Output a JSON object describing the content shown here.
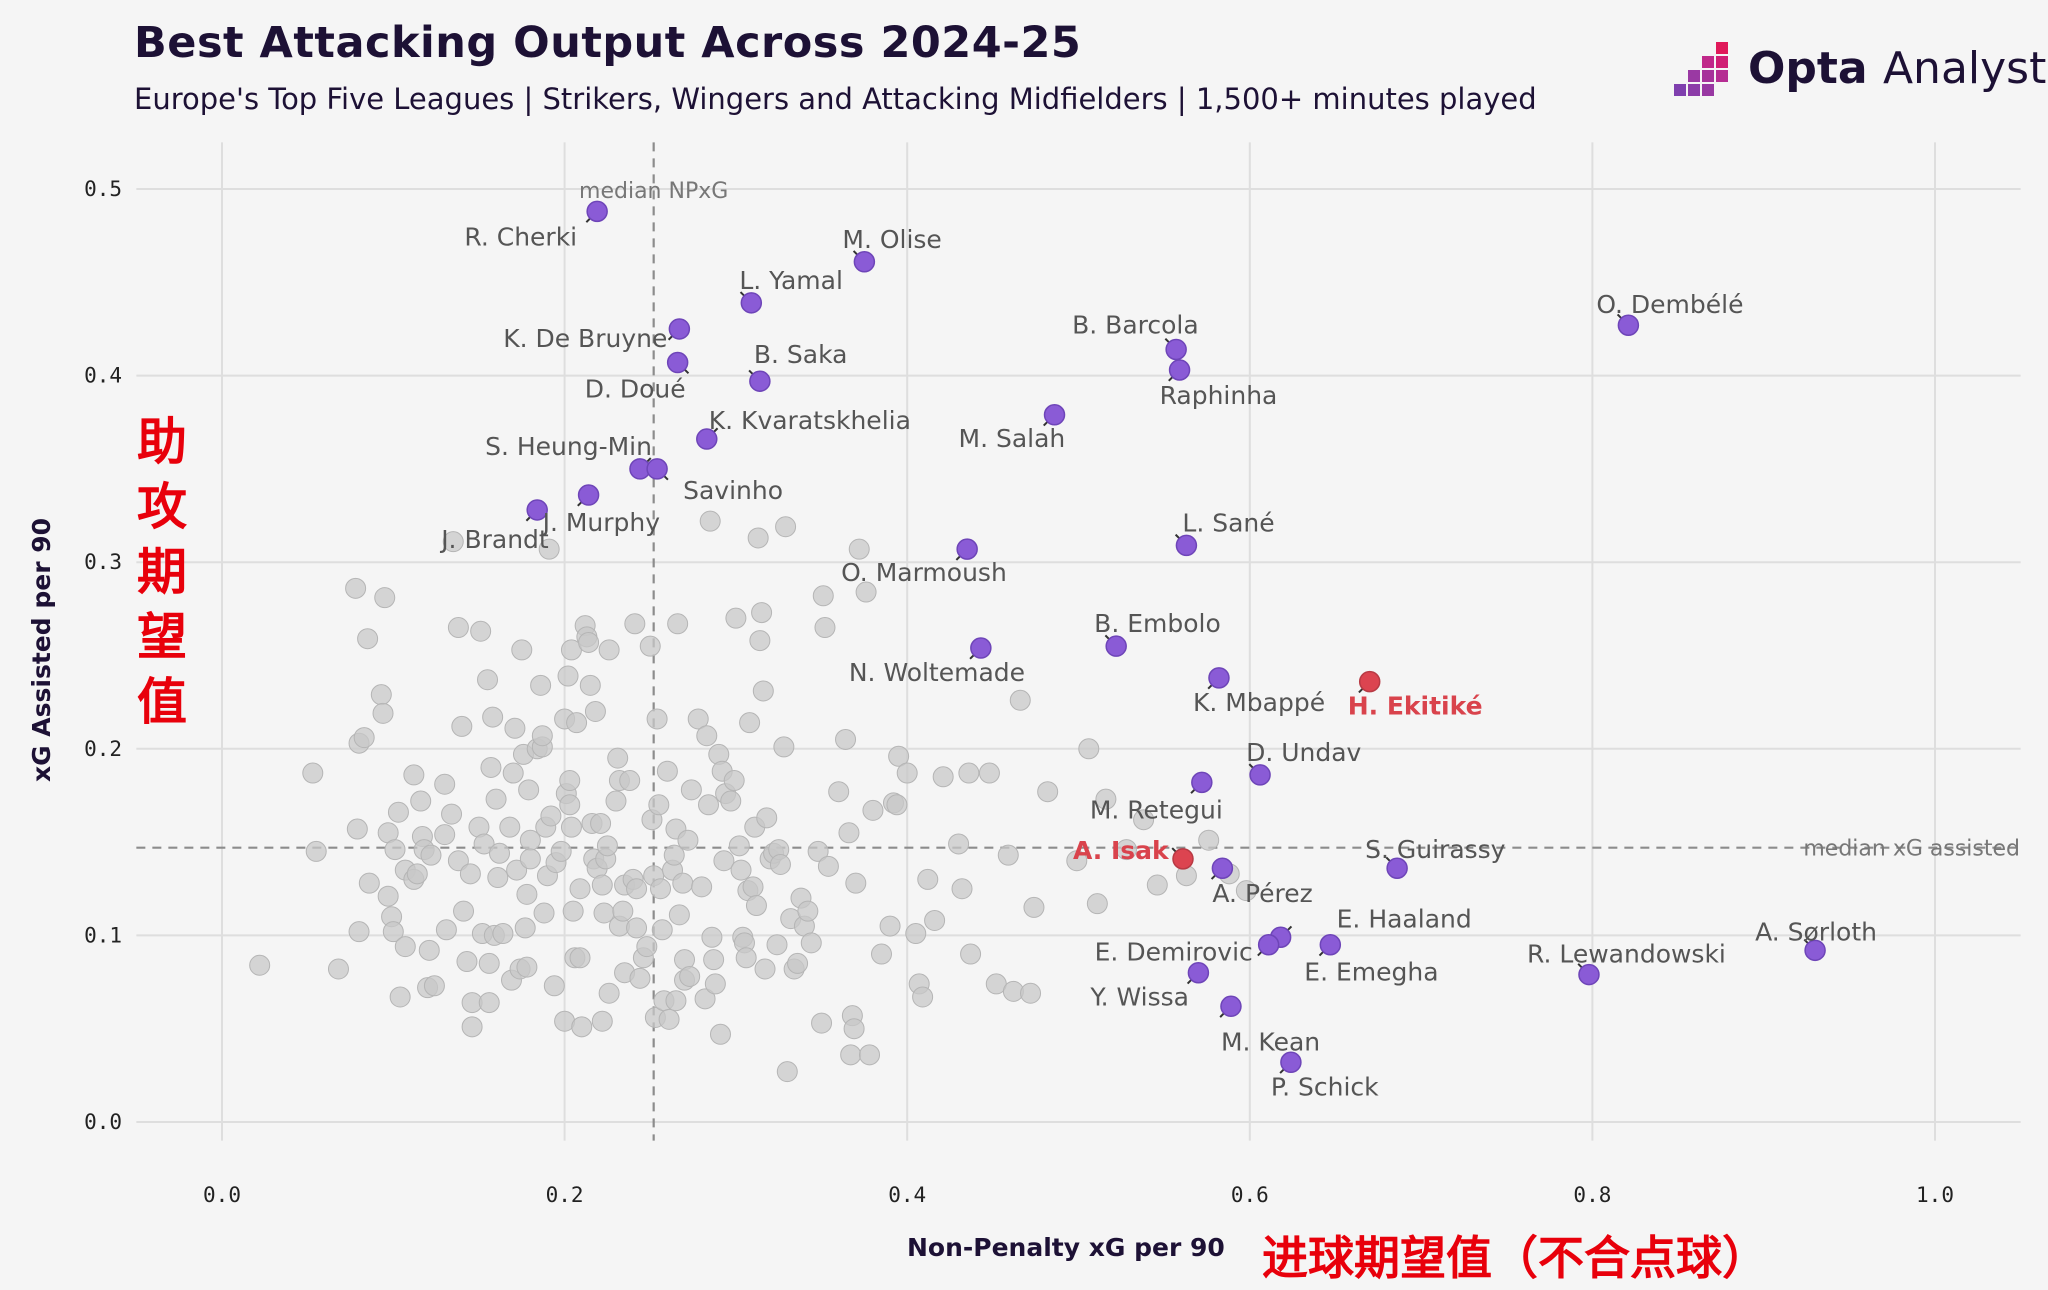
{
  "header": {
    "title": "Best Attacking Output Across 2024-25",
    "subtitle": "Europe's Top Five Leagues | Strikers, Wingers and Attacking Midfielders | 1,500+ minutes played"
  },
  "logo": {
    "brand": "Opta",
    "suffix": "Analyst"
  },
  "annotations": {
    "y_cn": [
      "助",
      "攻",
      "期",
      "望",
      "值"
    ],
    "x_cn": "进球期望值（不合点球）"
  },
  "colors": {
    "background": "#f5f5f5",
    "labeled_point": "#8a5bd6",
    "highlight_point": "#dc4450",
    "highlight_text": "#d9434c",
    "background_point": "#c8c8c8",
    "grid": "#dedede",
    "median_line": "#8c8c8c",
    "annotation_red": "#e8000b"
  },
  "chart_data": {
    "type": "scatter",
    "xlabel": "Non-Penalty xG per 90",
    "ylabel": "xG Assisted per 90",
    "xlim": [
      -0.05,
      1.05
    ],
    "ylim": [
      -0.01,
      0.525
    ],
    "xticks": [
      "0.0",
      "0.2",
      "0.4",
      "0.6",
      "0.8",
      "1.0"
    ],
    "yticks": [
      "0.0",
      "0.1",
      "0.2",
      "0.3",
      "0.4",
      "0.5"
    ],
    "grid": true,
    "median_lines": {
      "x": 0.252,
      "x_label": "median NPxG",
      "y": 0.147,
      "y_label": "median xG assisted"
    },
    "labeled_points": [
      {
        "name": "R. Cherki",
        "x": 0.219,
        "y": 0.488
      },
      {
        "name": "M. Olise",
        "x": 0.375,
        "y": 0.461
      },
      {
        "name": "L. Yamal",
        "x": 0.309,
        "y": 0.439
      },
      {
        "name": "K. De Bruyne",
        "x": 0.267,
        "y": 0.425
      },
      {
        "name": "D. Doué",
        "x": 0.266,
        "y": 0.407
      },
      {
        "name": "B. Saka",
        "x": 0.314,
        "y": 0.397
      },
      {
        "name": "K. Kvaratskhelia",
        "x": 0.283,
        "y": 0.366
      },
      {
        "name": "S. Heung-Min",
        "x": 0.244,
        "y": 0.35
      },
      {
        "name": "Savinho",
        "x": 0.254,
        "y": 0.35
      },
      {
        "name": "J. Murphy",
        "x": 0.214,
        "y": 0.336
      },
      {
        "name": "J. Brandt",
        "x": 0.184,
        "y": 0.328
      },
      {
        "name": "O. Dembélé",
        "x": 0.821,
        "y": 0.427
      },
      {
        "name": "B. Barcola",
        "x": 0.557,
        "y": 0.414
      },
      {
        "name": "Raphinha",
        "x": 0.559,
        "y": 0.403
      },
      {
        "name": "M. Salah",
        "x": 0.486,
        "y": 0.379
      },
      {
        "name": "L. Sané",
        "x": 0.563,
        "y": 0.309
      },
      {
        "name": "O. Marmoush",
        "x": 0.435,
        "y": 0.307
      },
      {
        "name": "B. Embolo",
        "x": 0.522,
        "y": 0.255
      },
      {
        "name": "N. Woltemade",
        "x": 0.443,
        "y": 0.254
      },
      {
        "name": "K. Mbappé",
        "x": 0.582,
        "y": 0.238
      },
      {
        "name": "D. Undav",
        "x": 0.606,
        "y": 0.186
      },
      {
        "name": "M. Retegui",
        "x": 0.572,
        "y": 0.182
      },
      {
        "name": "S. Guirassy",
        "x": 0.686,
        "y": 0.136
      },
      {
        "name": "A. Pérez",
        "x": 0.584,
        "y": 0.136
      },
      {
        "name": "E. Haaland",
        "x": 0.618,
        "y": 0.099
      },
      {
        "name": "E. Demirovic",
        "x": 0.611,
        "y": 0.095
      },
      {
        "name": "E. Emegha",
        "x": 0.647,
        "y": 0.095
      },
      {
        "name": "Y. Wissa",
        "x": 0.57,
        "y": 0.08
      },
      {
        "name": "M. Kean",
        "x": 0.589,
        "y": 0.062
      },
      {
        "name": "P. Schick",
        "x": 0.624,
        "y": 0.032
      },
      {
        "name": "R. Lewandowski",
        "x": 0.798,
        "y": 0.079
      },
      {
        "name": "A. Sørloth",
        "x": 0.93,
        "y": 0.092
      }
    ],
    "highlighted_points": [
      {
        "name": "H. Ekitiké",
        "x": 0.67,
        "y": 0.236
      },
      {
        "name": "A. Isak",
        "x": 0.561,
        "y": 0.141
      }
    ],
    "unlabeled_points": [
      [
        0.022,
        0.084
      ],
      [
        0.053,
        0.187
      ],
      [
        0.055,
        0.145
      ],
      [
        0.068,
        0.082
      ],
      [
        0.078,
        0.286
      ],
      [
        0.08,
        0.203
      ],
      [
        0.079,
        0.157
      ],
      [
        0.08,
        0.102
      ],
      [
        0.083,
        0.206
      ],
      [
        0.085,
        0.259
      ],
      [
        0.086,
        0.128
      ],
      [
        0.093,
        0.229
      ],
      [
        0.094,
        0.219
      ],
      [
        0.095,
        0.281
      ],
      [
        0.097,
        0.155
      ],
      [
        0.097,
        0.121
      ],
      [
        0.099,
        0.11
      ],
      [
        0.1,
        0.102
      ],
      [
        0.101,
        0.146
      ],
      [
        0.103,
        0.166
      ],
      [
        0.104,
        0.067
      ],
      [
        0.107,
        0.135
      ],
      [
        0.107,
        0.094
      ],
      [
        0.112,
        0.186
      ],
      [
        0.112,
        0.13
      ],
      [
        0.114,
        0.133
      ],
      [
        0.116,
        0.172
      ],
      [
        0.117,
        0.153
      ],
      [
        0.118,
        0.146
      ],
      [
        0.12,
        0.072
      ],
      [
        0.121,
        0.092
      ],
      [
        0.122,
        0.143
      ],
      [
        0.124,
        0.073
      ],
      [
        0.13,
        0.181
      ],
      [
        0.13,
        0.154
      ],
      [
        0.131,
        0.103
      ],
      [
        0.134,
        0.165
      ],
      [
        0.135,
        0.311
      ],
      [
        0.138,
        0.14
      ],
      [
        0.138,
        0.265
      ],
      [
        0.14,
        0.212
      ],
      [
        0.141,
        0.113
      ],
      [
        0.143,
        0.086
      ],
      [
        0.145,
        0.133
      ],
      [
        0.146,
        0.064
      ],
      [
        0.146,
        0.051
      ],
      [
        0.15,
        0.158
      ],
      [
        0.151,
        0.263
      ],
      [
        0.152,
        0.101
      ],
      [
        0.153,
        0.149
      ],
      [
        0.155,
        0.237
      ],
      [
        0.156,
        0.085
      ],
      [
        0.156,
        0.064
      ],
      [
        0.157,
        0.19
      ],
      [
        0.158,
        0.217
      ],
      [
        0.159,
        0.1
      ],
      [
        0.16,
        0.173
      ],
      [
        0.161,
        0.131
      ],
      [
        0.162,
        0.144
      ],
      [
        0.164,
        0.101
      ],
      [
        0.168,
        0.158
      ],
      [
        0.169,
        0.076
      ],
      [
        0.17,
        0.187
      ],
      [
        0.171,
        0.211
      ],
      [
        0.172,
        0.135
      ],
      [
        0.174,
        0.082
      ],
      [
        0.175,
        0.253
      ],
      [
        0.176,
        0.197
      ],
      [
        0.177,
        0.104
      ],
      [
        0.178,
        0.083
      ],
      [
        0.178,
        0.122
      ],
      [
        0.179,
        0.178
      ],
      [
        0.18,
        0.151
      ],
      [
        0.18,
        0.141
      ],
      [
        0.184,
        0.2
      ],
      [
        0.186,
        0.234
      ],
      [
        0.187,
        0.201
      ],
      [
        0.187,
        0.207
      ],
      [
        0.188,
        0.112
      ],
      [
        0.189,
        0.158
      ],
      [
        0.19,
        0.132
      ],
      [
        0.191,
        0.307
      ],
      [
        0.192,
        0.164
      ],
      [
        0.194,
        0.073
      ],
      [
        0.195,
        0.139
      ],
      [
        0.198,
        0.145
      ],
      [
        0.2,
        0.054
      ],
      [
        0.2,
        0.216
      ],
      [
        0.201,
        0.176
      ],
      [
        0.202,
        0.239
      ],
      [
        0.203,
        0.183
      ],
      [
        0.203,
        0.17
      ],
      [
        0.204,
        0.253
      ],
      [
        0.204,
        0.158
      ],
      [
        0.205,
        0.113
      ],
      [
        0.206,
        0.088
      ],
      [
        0.207,
        0.214
      ],
      [
        0.209,
        0.088
      ],
      [
        0.209,
        0.125
      ],
      [
        0.21,
        0.051
      ],
      [
        0.212,
        0.266
      ],
      [
        0.213,
        0.26
      ],
      [
        0.214,
        0.257
      ],
      [
        0.215,
        0.234
      ],
      [
        0.216,
        0.16
      ],
      [
        0.217,
        0.141
      ],
      [
        0.218,
        0.22
      ],
      [
        0.219,
        0.136
      ],
      [
        0.221,
        0.16
      ],
      [
        0.222,
        0.127
      ],
      [
        0.222,
        0.054
      ],
      [
        0.223,
        0.112
      ],
      [
        0.224,
        0.141
      ],
      [
        0.225,
        0.148
      ],
      [
        0.226,
        0.253
      ],
      [
        0.226,
        0.069
      ],
      [
        0.23,
        0.172
      ],
      [
        0.231,
        0.195
      ],
      [
        0.232,
        0.105
      ],
      [
        0.232,
        0.183
      ],
      [
        0.234,
        0.113
      ],
      [
        0.235,
        0.127
      ],
      [
        0.235,
        0.08
      ],
      [
        0.238,
        0.183
      ],
      [
        0.24,
        0.13
      ],
      [
        0.241,
        0.267
      ],
      [
        0.242,
        0.125
      ],
      [
        0.242,
        0.104
      ],
      [
        0.244,
        0.077
      ],
      [
        0.246,
        0.088
      ],
      [
        0.248,
        0.094
      ],
      [
        0.25,
        0.255
      ],
      [
        0.251,
        0.162
      ],
      [
        0.252,
        0.132
      ],
      [
        0.253,
        0.056
      ],
      [
        0.254,
        0.216
      ],
      [
        0.255,
        0.17
      ],
      [
        0.256,
        0.125
      ],
      [
        0.257,
        0.103
      ],
      [
        0.258,
        0.065
      ],
      [
        0.26,
        0.188
      ],
      [
        0.261,
        0.055
      ],
      [
        0.263,
        0.135
      ],
      [
        0.264,
        0.143
      ],
      [
        0.265,
        0.065
      ],
      [
        0.265,
        0.157
      ],
      [
        0.266,
        0.267
      ],
      [
        0.267,
        0.111
      ],
      [
        0.269,
        0.128
      ],
      [
        0.27,
        0.087
      ],
      [
        0.27,
        0.076
      ],
      [
        0.272,
        0.151
      ],
      [
        0.273,
        0.078
      ],
      [
        0.274,
        0.178
      ],
      [
        0.278,
        0.216
      ],
      [
        0.28,
        0.126
      ],
      [
        0.282,
        0.066
      ],
      [
        0.283,
        0.207
      ],
      [
        0.284,
        0.17
      ],
      [
        0.285,
        0.322
      ],
      [
        0.286,
        0.099
      ],
      [
        0.287,
        0.087
      ],
      [
        0.288,
        0.074
      ],
      [
        0.29,
        0.197
      ],
      [
        0.291,
        0.047
      ],
      [
        0.292,
        0.188
      ],
      [
        0.293,
        0.14
      ],
      [
        0.294,
        0.176
      ],
      [
        0.297,
        0.172
      ],
      [
        0.299,
        0.183
      ],
      [
        0.3,
        0.27
      ],
      [
        0.302,
        0.148
      ],
      [
        0.303,
        0.135
      ],
      [
        0.304,
        0.099
      ],
      [
        0.305,
        0.096
      ],
      [
        0.306,
        0.088
      ],
      [
        0.307,
        0.124
      ],
      [
        0.308,
        0.214
      ],
      [
        0.31,
        0.126
      ],
      [
        0.311,
        0.158
      ],
      [
        0.312,
        0.116
      ],
      [
        0.313,
        0.313
      ],
      [
        0.314,
        0.258
      ],
      [
        0.315,
        0.273
      ],
      [
        0.316,
        0.231
      ],
      [
        0.317,
        0.082
      ],
      [
        0.318,
        0.163
      ],
      [
        0.32,
        0.141
      ],
      [
        0.322,
        0.144
      ],
      [
        0.324,
        0.095
      ],
      [
        0.325,
        0.146
      ],
      [
        0.326,
        0.138
      ],
      [
        0.328,
        0.201
      ],
      [
        0.329,
        0.319
      ],
      [
        0.33,
        0.027
      ],
      [
        0.332,
        0.109
      ],
      [
        0.334,
        0.082
      ],
      [
        0.336,
        0.085
      ],
      [
        0.338,
        0.12
      ],
      [
        0.34,
        0.105
      ],
      [
        0.342,
        0.113
      ],
      [
        0.344,
        0.096
      ],
      [
        0.348,
        0.145
      ],
      [
        0.35,
        0.053
      ],
      [
        0.351,
        0.282
      ],
      [
        0.352,
        0.265
      ],
      [
        0.354,
        0.137
      ],
      [
        0.36,
        0.177
      ],
      [
        0.364,
        0.205
      ],
      [
        0.366,
        0.155
      ],
      [
        0.367,
        0.036
      ],
      [
        0.368,
        0.057
      ],
      [
        0.369,
        0.05
      ],
      [
        0.37,
        0.128
      ],
      [
        0.372,
        0.307
      ],
      [
        0.376,
        0.284
      ],
      [
        0.378,
        0.036
      ],
      [
        0.38,
        0.167
      ],
      [
        0.385,
        0.09
      ],
      [
        0.39,
        0.105
      ],
      [
        0.392,
        0.171
      ],
      [
        0.394,
        0.17
      ],
      [
        0.395,
        0.196
      ],
      [
        0.4,
        0.187
      ],
      [
        0.405,
        0.101
      ],
      [
        0.407,
        0.074
      ],
      [
        0.409,
        0.067
      ],
      [
        0.412,
        0.13
      ],
      [
        0.416,
        0.108
      ],
      [
        0.421,
        0.185
      ],
      [
        0.43,
        0.149
      ],
      [
        0.432,
        0.125
      ],
      [
        0.436,
        0.187
      ],
      [
        0.437,
        0.09
      ],
      [
        0.448,
        0.187
      ],
      [
        0.452,
        0.074
      ],
      [
        0.459,
        0.143
      ],
      [
        0.462,
        0.07
      ],
      [
        0.466,
        0.226
      ],
      [
        0.472,
        0.069
      ],
      [
        0.474,
        0.115
      ],
      [
        0.482,
        0.177
      ],
      [
        0.499,
        0.14
      ],
      [
        0.506,
        0.2
      ],
      [
        0.511,
        0.117
      ],
      [
        0.516,
        0.173
      ],
      [
        0.528,
        0.146
      ],
      [
        0.538,
        0.162
      ],
      [
        0.546,
        0.127
      ],
      [
        0.563,
        0.132
      ],
      [
        0.576,
        0.151
      ],
      [
        0.588,
        0.133
      ],
      [
        0.598,
        0.124
      ]
    ]
  }
}
